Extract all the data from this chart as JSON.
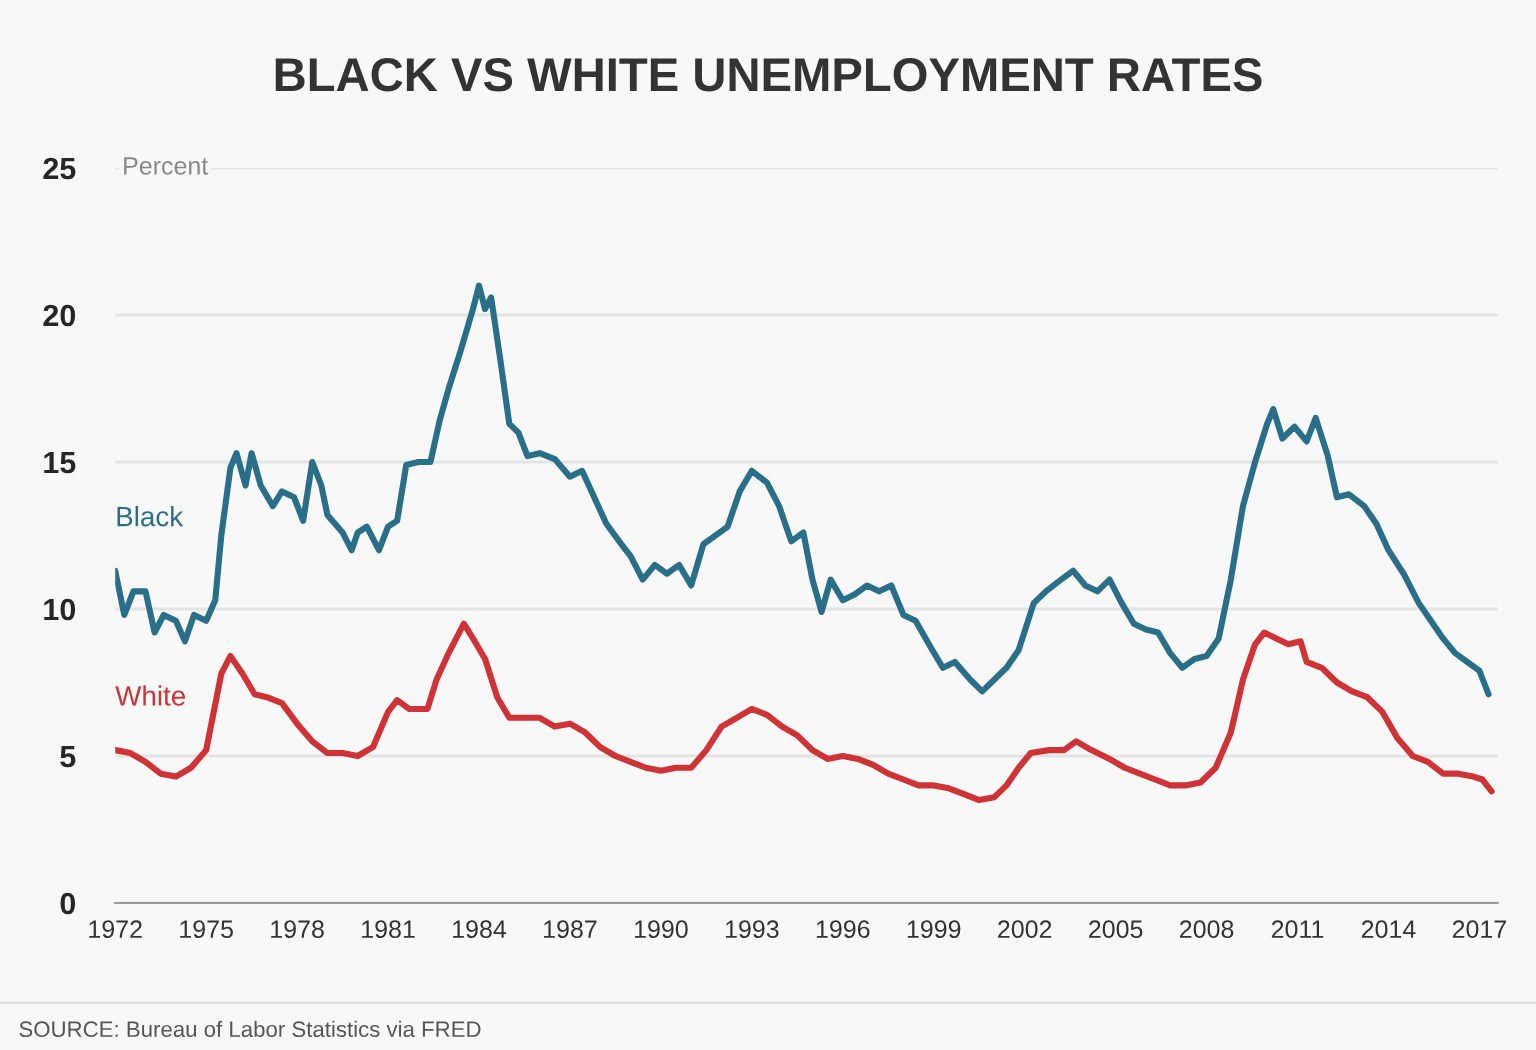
{
  "chart_data": {
    "type": "line",
    "title": "BLACK VS WHITE UNEMPLOYMENT RATES",
    "ylabel": "Percent",
    "xlim": [
      1972,
      2017.6
    ],
    "xticks": [
      1972,
      1975,
      1978,
      1981,
      1984,
      1987,
      1990,
      1993,
      1996,
      1999,
      2002,
      2005,
      2008,
      2011,
      2014,
      2017
    ],
    "ylim": [
      0,
      25
    ],
    "yticks": [
      0,
      5,
      10,
      15,
      20,
      25
    ],
    "grid": "y",
    "annotations": [
      "SOURCE: Bureau of Labor Statistics via FRED"
    ],
    "series": [
      {
        "name": "Black",
        "color": "#2a6f8a",
        "x": [
          1972.0,
          1972.3,
          1972.6,
          1973.0,
          1973.3,
          1973.6,
          1974.0,
          1974.3,
          1974.6,
          1975.0,
          1975.3,
          1975.5,
          1975.8,
          1976.0,
          1976.3,
          1976.5,
          1976.8,
          1977.2,
          1977.5,
          1977.9,
          1978.2,
          1978.5,
          1978.8,
          1979.0,
          1979.5,
          1979.8,
          1980.0,
          1980.3,
          1980.7,
          1981.0,
          1981.3,
          1981.6,
          1982.0,
          1982.4,
          1982.7,
          1983.0,
          1983.4,
          1983.8,
          1984.0,
          1984.2,
          1984.4,
          1984.7,
          1985.0,
          1985.3,
          1985.6,
          1986.0,
          1986.5,
          1987.0,
          1987.4,
          1987.8,
          1988.2,
          1988.7,
          1989.0,
          1989.4,
          1989.8,
          1990.2,
          1990.6,
          1991.0,
          1991.4,
          1991.8,
          1992.2,
          1992.6,
          1993.0,
          1993.5,
          1993.9,
          1994.3,
          1994.7,
          1995.0,
          1995.3,
          1995.6,
          1996.0,
          1996.4,
          1996.8,
          1997.2,
          1997.6,
          1998.0,
          1998.4,
          1998.9,
          1999.3,
          1999.7,
          2000.2,
          2000.6,
          2001.0,
          2001.4,
          2001.8,
          2002.3,
          2002.7,
          2003.2,
          2003.6,
          2004.0,
          2004.4,
          2004.8,
          2005.2,
          2005.6,
          2006.0,
          2006.4,
          2006.8,
          2007.2,
          2007.6,
          2008.0,
          2008.4,
          2008.8,
          2009.2,
          2009.6,
          2010.0,
          2010.2,
          2010.5,
          2010.9,
          2011.3,
          2011.6,
          2012.0,
          2012.3,
          2012.7,
          2013.2,
          2013.6,
          2014.0,
          2014.5,
          2015.0,
          2015.4,
          2015.8,
          2016.2,
          2016.6,
          2017.0,
          2017.3
        ],
        "values": [
          11.3,
          9.8,
          10.6,
          10.6,
          9.2,
          9.8,
          9.6,
          8.9,
          9.8,
          9.6,
          10.3,
          12.5,
          14.8,
          15.3,
          14.2,
          15.3,
          14.2,
          13.5,
          14.0,
          13.8,
          13.0,
          15.0,
          14.2,
          13.2,
          12.6,
          12.0,
          12.6,
          12.8,
          12.0,
          12.8,
          13.0,
          14.9,
          15.0,
          15.0,
          16.4,
          17.5,
          18.8,
          20.2,
          21.0,
          20.2,
          20.6,
          18.5,
          16.3,
          16.0,
          15.2,
          15.3,
          15.1,
          14.5,
          14.7,
          13.8,
          12.9,
          12.2,
          11.8,
          11.0,
          11.5,
          11.2,
          11.5,
          10.8,
          12.2,
          12.5,
          12.8,
          14.0,
          14.7,
          14.3,
          13.5,
          12.3,
          12.6,
          11.0,
          9.9,
          11.0,
          10.3,
          10.5,
          10.8,
          10.6,
          10.8,
          9.8,
          9.6,
          8.7,
          8.0,
          8.2,
          7.6,
          7.2,
          7.6,
          8.0,
          8.6,
          10.2,
          10.6,
          11.0,
          11.3,
          10.8,
          10.6,
          11.0,
          10.2,
          9.5,
          9.3,
          9.2,
          8.5,
          8.0,
          8.3,
          8.4,
          9.0,
          11.0,
          13.5,
          15.0,
          16.3,
          16.8,
          15.8,
          16.2,
          15.7,
          16.5,
          15.2,
          13.8,
          13.9,
          13.5,
          12.9,
          12.0,
          11.2,
          10.2,
          9.6,
          9.0,
          8.5,
          8.2,
          7.9,
          7.1
        ]
      },
      {
        "name": "White",
        "color": "#cf3336",
        "x": [
          1972.0,
          1972.5,
          1973.0,
          1973.5,
          1974.0,
          1974.5,
          1975.0,
          1975.5,
          1975.8,
          1976.2,
          1976.6,
          1977.0,
          1977.5,
          1978.0,
          1978.5,
          1979.0,
          1979.5,
          1980.0,
          1980.5,
          1981.0,
          1981.3,
          1981.7,
          1982.3,
          1982.6,
          1983.0,
          1983.5,
          1983.8,
          1984.2,
          1984.6,
          1985.0,
          1985.5,
          1986.0,
          1986.5,
          1987.0,
          1987.5,
          1988.0,
          1988.5,
          1989.0,
          1989.5,
          1990.0,
          1990.5,
          1991.0,
          1991.5,
          1992.0,
          1992.5,
          1993.0,
          1993.5,
          1994.0,
          1994.5,
          1995.0,
          1995.5,
          1996.0,
          1996.5,
          1997.0,
          1997.5,
          1998.0,
          1998.5,
          1999.0,
          1999.5,
          2000.0,
          2000.5,
          2001.0,
          2001.4,
          2001.8,
          2002.2,
          2002.8,
          2003.3,
          2003.7,
          2004.2,
          2004.8,
          2005.3,
          2005.8,
          2006.3,
          2006.8,
          2007.3,
          2007.8,
          2008.3,
          2008.8,
          2009.2,
          2009.6,
          2009.9,
          2010.3,
          2010.7,
          2011.1,
          2011.3,
          2011.8,
          2012.3,
          2012.8,
          2013.3,
          2013.8,
          2014.3,
          2014.8,
          2015.3,
          2015.8,
          2016.3,
          2016.8,
          2017.1,
          2017.4
        ],
        "values": [
          5.2,
          5.1,
          4.8,
          4.4,
          4.3,
          4.6,
          5.2,
          7.8,
          8.4,
          7.8,
          7.1,
          7.0,
          6.8,
          6.1,
          5.5,
          5.1,
          5.1,
          5.0,
          5.3,
          6.5,
          6.9,
          6.6,
          6.6,
          7.6,
          8.5,
          9.5,
          9.0,
          8.3,
          7.0,
          6.3,
          6.3,
          6.3,
          6.0,
          6.1,
          5.8,
          5.3,
          5.0,
          4.8,
          4.6,
          4.5,
          4.6,
          4.6,
          5.2,
          6.0,
          6.3,
          6.6,
          6.4,
          6.0,
          5.7,
          5.2,
          4.9,
          5.0,
          4.9,
          4.7,
          4.4,
          4.2,
          4.0,
          4.0,
          3.9,
          3.7,
          3.5,
          3.6,
          4.0,
          4.6,
          5.1,
          5.2,
          5.2,
          5.5,
          5.2,
          4.9,
          4.6,
          4.4,
          4.2,
          4.0,
          4.0,
          4.1,
          4.6,
          5.8,
          7.6,
          8.8,
          9.2,
          9.0,
          8.8,
          8.9,
          8.2,
          8.0,
          7.5,
          7.2,
          7.0,
          6.5,
          5.6,
          5.0,
          4.8,
          4.4,
          4.4,
          4.3,
          4.2,
          3.8
        ]
      }
    ]
  }
}
